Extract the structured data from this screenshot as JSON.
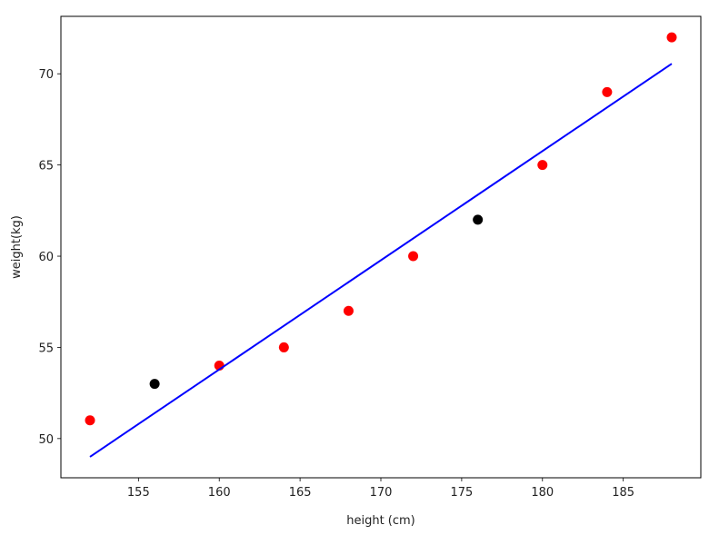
{
  "chart_data": {
    "type": "scatter",
    "xlabel": "height (cm)",
    "ylabel": "weight(kg)",
    "xlim": [
      150.2,
      189.8
    ],
    "ylim": [
      47.85,
      73.15
    ],
    "xticks": [
      155,
      160,
      165,
      170,
      175,
      180,
      185
    ],
    "yticks": [
      50,
      55,
      60,
      65,
      70
    ],
    "series": [
      {
        "kind": "points",
        "color": "#ff0000",
        "x": [
          152,
          160,
          164,
          168,
          172,
          180,
          184,
          188
        ],
        "values": [
          51,
          54,
          55,
          57,
          60,
          65,
          69,
          72
        ]
      },
      {
        "kind": "points",
        "color": "#000000",
        "x": [
          156,
          176
        ],
        "values": [
          53,
          62
        ]
      },
      {
        "kind": "line",
        "color": "#0000ff",
        "x": [
          152,
          188
        ],
        "values": [
          49.0,
          70.55
        ]
      }
    ]
  }
}
